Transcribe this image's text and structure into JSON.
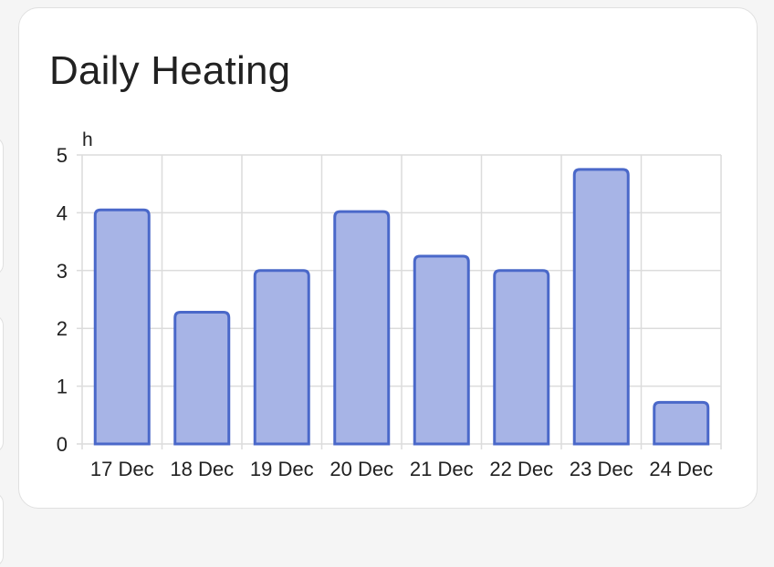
{
  "card": {
    "title": "Daily Heating"
  },
  "chart_data": {
    "type": "bar",
    "unit": "h",
    "categories": [
      "17 Dec",
      "18 Dec",
      "19 Dec",
      "20 Dec",
      "21 Dec",
      "22 Dec",
      "23 Dec",
      "24 Dec"
    ],
    "values": [
      4.05,
      2.28,
      3.0,
      4.02,
      3.25,
      3.0,
      4.75,
      0.72
    ],
    "ylim": [
      0,
      5
    ],
    "yticks": [
      0,
      1,
      2,
      3,
      4,
      5
    ],
    "grid": true,
    "colors": {
      "bar_fill": "#a5b3e5",
      "bar_stroke": "#4a68c9",
      "grid": "#dcdcdc"
    }
  }
}
